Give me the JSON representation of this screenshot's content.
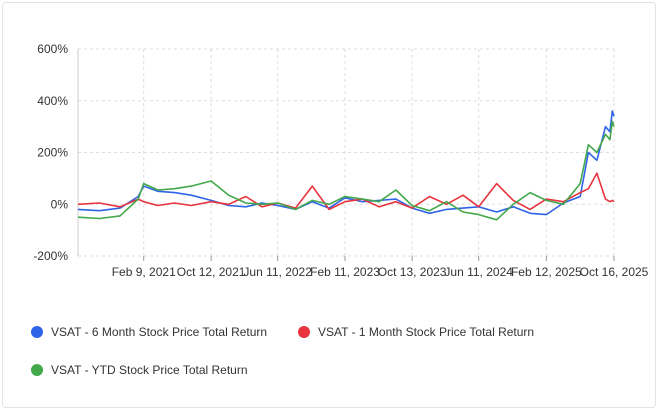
{
  "chart_data": {
    "type": "line",
    "title": "",
    "xlabel": "",
    "ylabel": "",
    "ylim": [
      -200,
      600
    ],
    "yticks": [
      -200,
      0,
      200,
      400,
      600
    ],
    "ytick_labels": [
      "-200%",
      "0%",
      "200%",
      "400%",
      "600%"
    ],
    "x_range": [
      "2020-06-15",
      "2025-10-16"
    ],
    "xticks": [
      "2021-02-09",
      "2021-10-12",
      "2022-06-11",
      "2023-02-11",
      "2023-10-13",
      "2024-06-11",
      "2025-02-12",
      "2025-10-16"
    ],
    "xtick_labels": [
      "Feb 9, 2021",
      "Oct 12, 2021",
      "Jun 11, 2022",
      "Feb 11, 2023",
      "Oct 13, 2023",
      "Jun 11, 2024",
      "Feb 12, 2025",
      "Oct 16, 2025"
    ],
    "grid": true,
    "legend_position": "bottom",
    "series": [
      {
        "name": "VSAT - 6 Month Stock Price Total Return",
        "color": "#2f64e8",
        "points": [
          [
            "2020-06-15",
            -20
          ],
          [
            "2020-09-01",
            -25
          ],
          [
            "2020-11-15",
            -15
          ],
          [
            "2021-01-20",
            30
          ],
          [
            "2021-02-09",
            70
          ],
          [
            "2021-04-01",
            50
          ],
          [
            "2021-06-01",
            45
          ],
          [
            "2021-08-01",
            35
          ],
          [
            "2021-10-12",
            15
          ],
          [
            "2021-12-15",
            -5
          ],
          [
            "2022-02-15",
            -10
          ],
          [
            "2022-04-15",
            5
          ],
          [
            "2022-06-11",
            -5
          ],
          [
            "2022-08-15",
            -20
          ],
          [
            "2022-10-15",
            10
          ],
          [
            "2022-12-15",
            -15
          ],
          [
            "2023-02-11",
            25
          ],
          [
            "2023-04-15",
            10
          ],
          [
            "2023-06-15",
            15
          ],
          [
            "2023-08-15",
            20
          ],
          [
            "2023-10-13",
            -15
          ],
          [
            "2023-12-15",
            -35
          ],
          [
            "2024-02-15",
            -20
          ],
          [
            "2024-04-15",
            -15
          ],
          [
            "2024-06-11",
            -10
          ],
          [
            "2024-08-15",
            -30
          ],
          [
            "2024-10-15",
            -10
          ],
          [
            "2024-12-15",
            -35
          ],
          [
            "2025-02-12",
            -40
          ],
          [
            "2025-04-15",
            5
          ],
          [
            "2025-06-15",
            30
          ],
          [
            "2025-07-15",
            200
          ],
          [
            "2025-08-15",
            170
          ],
          [
            "2025-09-15",
            300
          ],
          [
            "2025-10-01",
            280
          ],
          [
            "2025-10-10",
            360
          ],
          [
            "2025-10-16",
            340
          ]
        ]
      },
      {
        "name": "VSAT - 1 Month Stock Price Total Return",
        "color": "#e8343e",
        "points": [
          [
            "2020-06-15",
            0
          ],
          [
            "2020-09-01",
            5
          ],
          [
            "2020-11-15",
            -10
          ],
          [
            "2021-01-20",
            20
          ],
          [
            "2021-02-09",
            10
          ],
          [
            "2021-04-01",
            -5
          ],
          [
            "2021-06-01",
            5
          ],
          [
            "2021-08-01",
            -5
          ],
          [
            "2021-10-12",
            10
          ],
          [
            "2021-12-15",
            0
          ],
          [
            "2022-02-15",
            30
          ],
          [
            "2022-04-15",
            -10
          ],
          [
            "2022-06-11",
            5
          ],
          [
            "2022-08-15",
            -15
          ],
          [
            "2022-10-15",
            70
          ],
          [
            "2022-12-15",
            -20
          ],
          [
            "2023-02-11",
            10
          ],
          [
            "2023-04-15",
            20
          ],
          [
            "2023-06-15",
            -10
          ],
          [
            "2023-08-15",
            10
          ],
          [
            "2023-10-13",
            -15
          ],
          [
            "2023-12-15",
            30
          ],
          [
            "2024-02-15",
            0
          ],
          [
            "2024-04-15",
            35
          ],
          [
            "2024-06-11",
            -10
          ],
          [
            "2024-08-15",
            80
          ],
          [
            "2024-10-15",
            15
          ],
          [
            "2024-12-15",
            -20
          ],
          [
            "2025-02-12",
            20
          ],
          [
            "2025-04-15",
            10
          ],
          [
            "2025-06-15",
            45
          ],
          [
            "2025-07-15",
            60
          ],
          [
            "2025-08-15",
            120
          ],
          [
            "2025-09-15",
            20
          ],
          [
            "2025-10-01",
            10
          ],
          [
            "2025-10-10",
            15
          ],
          [
            "2025-10-16",
            10
          ]
        ]
      },
      {
        "name": "VSAT - YTD Stock Price Total Return",
        "color": "#43a84b",
        "points": [
          [
            "2020-06-15",
            -50
          ],
          [
            "2020-09-01",
            -55
          ],
          [
            "2020-11-15",
            -45
          ],
          [
            "2021-01-20",
            20
          ],
          [
            "2021-02-09",
            80
          ],
          [
            "2021-04-01",
            55
          ],
          [
            "2021-06-01",
            60
          ],
          [
            "2021-08-01",
            70
          ],
          [
            "2021-10-12",
            90
          ],
          [
            "2021-12-15",
            35
          ],
          [
            "2022-02-15",
            5
          ],
          [
            "2022-04-15",
            0
          ],
          [
            "2022-06-11",
            5
          ],
          [
            "2022-08-15",
            -20
          ],
          [
            "2022-10-15",
            15
          ],
          [
            "2022-12-15",
            0
          ],
          [
            "2023-02-11",
            30
          ],
          [
            "2023-04-15",
            20
          ],
          [
            "2023-06-15",
            10
          ],
          [
            "2023-08-15",
            55
          ],
          [
            "2023-10-13",
            -5
          ],
          [
            "2023-12-15",
            -25
          ],
          [
            "2024-02-15",
            10
          ],
          [
            "2024-04-15",
            -30
          ],
          [
            "2024-06-11",
            -40
          ],
          [
            "2024-08-15",
            -60
          ],
          [
            "2024-10-15",
            0
          ],
          [
            "2024-12-15",
            45
          ],
          [
            "2025-02-12",
            15
          ],
          [
            "2025-04-15",
            0
          ],
          [
            "2025-06-15",
            80
          ],
          [
            "2025-07-15",
            230
          ],
          [
            "2025-08-15",
            200
          ],
          [
            "2025-09-15",
            270
          ],
          [
            "2025-10-01",
            250
          ],
          [
            "2025-10-10",
            320
          ],
          [
            "2025-10-16",
            300
          ]
        ]
      }
    ]
  }
}
